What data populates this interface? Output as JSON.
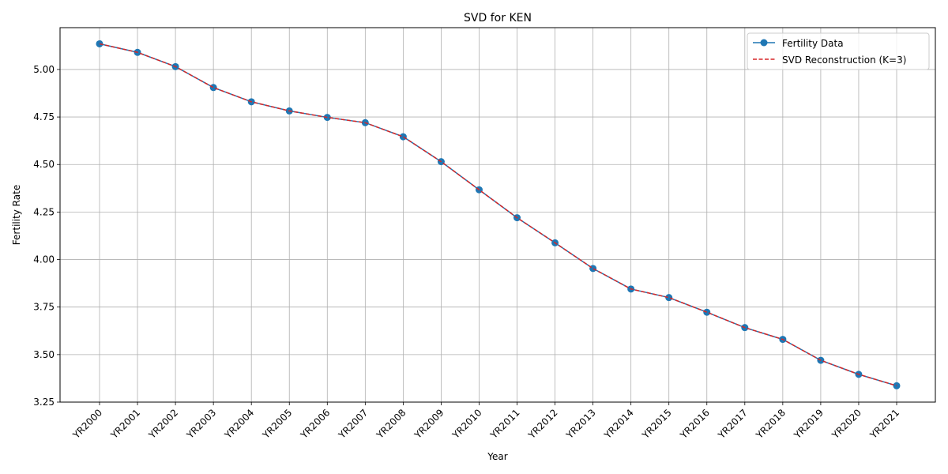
{
  "chart_data": {
    "type": "line",
    "title": "SVD for KEN",
    "xlabel": "Year",
    "ylabel": "Fertility Rate",
    "categories": [
      "YR2000",
      "YR2001",
      "YR2002",
      "YR2003",
      "YR2004",
      "YR2005",
      "YR2006",
      "YR2007",
      "YR2008",
      "YR2009",
      "YR2010",
      "YR2011",
      "YR2012",
      "YR2013",
      "YR2014",
      "YR2015",
      "YR2016",
      "YR2017",
      "YR2018",
      "YR2019",
      "YR2020",
      "YR2021"
    ],
    "ylim": [
      3.25,
      5.22
    ],
    "yticks": [
      "3.25",
      "3.50",
      "3.75",
      "4.00",
      "4.25",
      "4.50",
      "4.75",
      "5.00"
    ],
    "grid": true,
    "legend_position": "top-right",
    "series": [
      {
        "name": "Fertility Data",
        "style": "solid-with-markers",
        "color": "#1f77b4",
        "values": [
          5.135,
          5.09,
          5.015,
          4.905,
          4.83,
          4.782,
          4.748,
          4.72,
          4.646,
          4.515,
          4.367,
          4.22,
          4.088,
          3.953,
          3.845,
          3.8,
          3.723,
          3.642,
          3.58,
          3.47,
          3.396,
          3.336
        ]
      },
      {
        "name": "SVD Reconstruction (K=3)",
        "style": "dashed",
        "color": "#d62728",
        "values": [
          5.135,
          5.09,
          5.015,
          4.905,
          4.83,
          4.782,
          4.748,
          4.72,
          4.646,
          4.515,
          4.367,
          4.22,
          4.088,
          3.953,
          3.845,
          3.8,
          3.723,
          3.642,
          3.58,
          3.47,
          3.396,
          3.336
        ]
      }
    ]
  }
}
